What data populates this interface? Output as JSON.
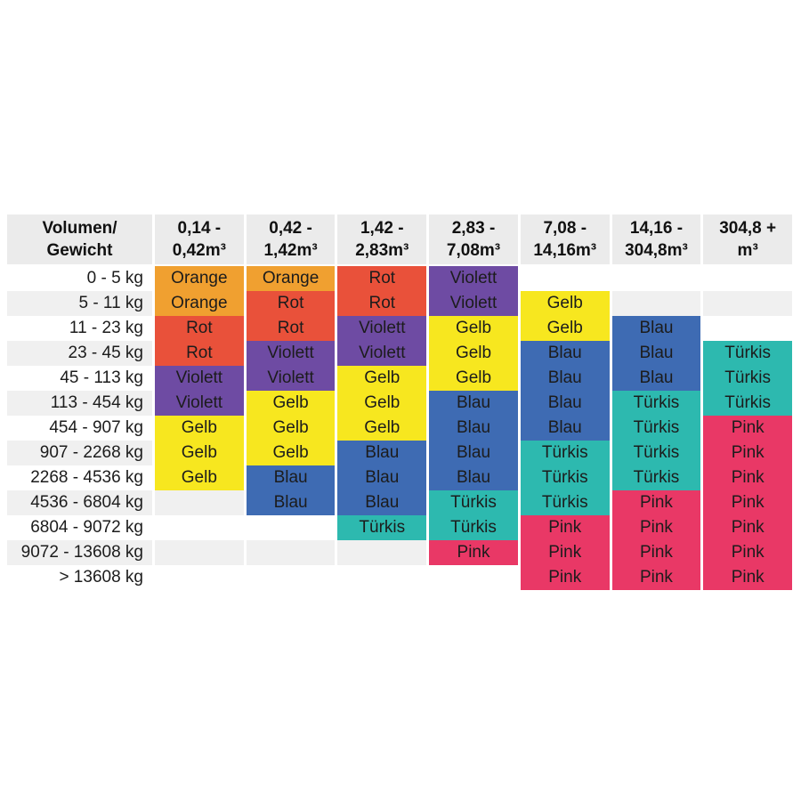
{
  "palette": {
    "Orange": "#F0A030",
    "Rot": "#E9513A",
    "Violett": "#6E4BA3",
    "Gelb": "#F7E71F",
    "Blau": "#3E6BB3",
    "Türkis": "#2DB9AF",
    "Pink": "#E93866"
  },
  "stripes": {
    "odd_row_bg": "#FFFFFF",
    "even_row_bg": "#F0F0F0",
    "header_bg": "#EBEBEB"
  },
  "table": {
    "corner_header": "Volumen/\nGewicht",
    "column_headers": [
      "0,14 -\n0,42m³",
      "0,42 -\n1,42m³",
      "1,42 -\n2,83m³",
      "2,83 -\n7,08m³",
      "7,08 -\n14,16m³",
      "14,16 -\n304,8m³",
      "304,8 +\nm³"
    ],
    "rows": [
      {
        "weight": "0 - 5 kg",
        "cells": [
          "Orange",
          "Orange",
          "Rot",
          "Violett",
          "",
          "",
          ""
        ]
      },
      {
        "weight": "5 - 11 kg",
        "cells": [
          "Orange",
          "Rot",
          "Rot",
          "Violett",
          "Gelb",
          "",
          ""
        ]
      },
      {
        "weight": "11 - 23 kg",
        "cells": [
          "Rot",
          "Rot",
          "Violett",
          "Gelb",
          "Gelb",
          "Blau",
          ""
        ]
      },
      {
        "weight": "23 - 45 kg",
        "cells": [
          "Rot",
          "Violett",
          "Violett",
          "Gelb",
          "Blau",
          "Blau",
          "Türkis"
        ]
      },
      {
        "weight": "45 - 113 kg",
        "cells": [
          "Violett",
          "Violett",
          "Gelb",
          "Gelb",
          "Blau",
          "Blau",
          "Türkis"
        ]
      },
      {
        "weight": "113 - 454 kg",
        "cells": [
          "Violett",
          "Gelb",
          "Gelb",
          "Blau",
          "Blau",
          "Türkis",
          "Türkis"
        ]
      },
      {
        "weight": "454 - 907 kg",
        "cells": [
          "Gelb",
          "Gelb",
          "Gelb",
          "Blau",
          "Blau",
          "Türkis",
          "Pink"
        ]
      },
      {
        "weight": "907 - 2268 kg",
        "cells": [
          "Gelb",
          "Gelb",
          "Blau",
          "Blau",
          "Türkis",
          "Türkis",
          "Pink"
        ]
      },
      {
        "weight": "2268 - 4536 kg",
        "cells": [
          "Gelb",
          "Blau",
          "Blau",
          "Blau",
          "Türkis",
          "Türkis",
          "Pink"
        ]
      },
      {
        "weight": "4536 - 6804 kg",
        "cells": [
          "",
          "Blau",
          "Blau",
          "Türkis",
          "Türkis",
          "Pink",
          "Pink"
        ]
      },
      {
        "weight": "6804 - 9072 kg",
        "cells": [
          "",
          "",
          "Türkis",
          "Türkis",
          "Pink",
          "Pink",
          "Pink"
        ]
      },
      {
        "weight": "9072 - 13608 kg",
        "cells": [
          "",
          "",
          "",
          "Pink",
          "Pink",
          "Pink",
          "Pink"
        ]
      },
      {
        "weight": "> 13608 kg",
        "cells": [
          "",
          "",
          "",
          "",
          "Pink",
          "Pink",
          "Pink"
        ]
      }
    ]
  },
  "chart_data": {
    "type": "heatmap",
    "title": "",
    "xlabel": "Volumen",
    "ylabel": "Gewicht",
    "x_categories": [
      "0,14 - 0,42m³",
      "0,42 - 1,42m³",
      "1,42 - 2,83m³",
      "2,83 - 7,08m³",
      "7,08 - 14,16m³",
      "14,16 - 304,8m³",
      "304,8 + m³"
    ],
    "y_categories": [
      "0 - 5 kg",
      "5 - 11 kg",
      "11 - 23 kg",
      "23 - 45 kg",
      "45 - 113 kg",
      "113 - 454 kg",
      "454 - 907 kg",
      "907 - 2268 kg",
      "2268 - 4536 kg",
      "4536 - 6804 kg",
      "6804 - 9072 kg",
      "9072 - 13608 kg",
      "> 13608 kg"
    ],
    "values": [
      [
        "Orange",
        "Orange",
        "Rot",
        "Violett",
        null,
        null,
        null
      ],
      [
        "Orange",
        "Rot",
        "Rot",
        "Violett",
        "Gelb",
        null,
        null
      ],
      [
        "Rot",
        "Rot",
        "Violett",
        "Gelb",
        "Gelb",
        "Blau",
        null
      ],
      [
        "Rot",
        "Violett",
        "Violett",
        "Gelb",
        "Blau",
        "Blau",
        "Türkis"
      ],
      [
        "Violett",
        "Violett",
        "Gelb",
        "Gelb",
        "Blau",
        "Blau",
        "Türkis"
      ],
      [
        "Violett",
        "Gelb",
        "Gelb",
        "Blau",
        "Blau",
        "Türkis",
        "Türkis"
      ],
      [
        "Gelb",
        "Gelb",
        "Gelb",
        "Blau",
        "Blau",
        "Türkis",
        "Pink"
      ],
      [
        "Gelb",
        "Gelb",
        "Blau",
        "Blau",
        "Türkis",
        "Türkis",
        "Pink"
      ],
      [
        "Gelb",
        "Blau",
        "Blau",
        "Blau",
        "Türkis",
        "Türkis",
        "Pink"
      ],
      [
        null,
        "Blau",
        "Blau",
        "Türkis",
        "Türkis",
        "Pink",
        "Pink"
      ],
      [
        null,
        null,
        "Türkis",
        "Türkis",
        "Pink",
        "Pink",
        "Pink"
      ],
      [
        null,
        null,
        null,
        "Pink",
        "Pink",
        "Pink",
        "Pink"
      ],
      [
        null,
        null,
        null,
        null,
        "Pink",
        "Pink",
        "Pink"
      ]
    ],
    "legend": {
      "Orange": "#F0A030",
      "Rot": "#E9513A",
      "Violett": "#6E4BA3",
      "Gelb": "#F7E71F",
      "Blau": "#3E6BB3",
      "Türkis": "#2DB9AF",
      "Pink": "#E93866"
    },
    "grid": false,
    "legend_position": "none"
  }
}
